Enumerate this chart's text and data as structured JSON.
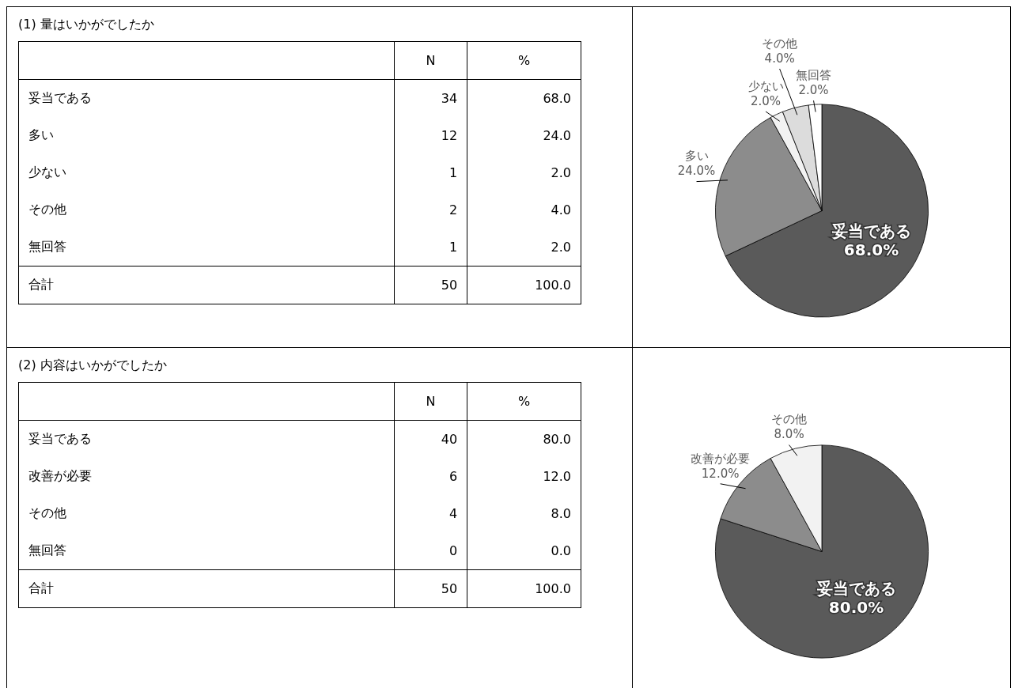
{
  "chart_data": [
    {
      "type": "other",
      "title": "(1) 量はいかがでしたか",
      "categories": [
        "妥当である",
        "多い",
        "少ない",
        "その他",
        "無回答",
        "合計"
      ],
      "series": [
        {
          "name": "N",
          "values": [
            34,
            12,
            1,
            2,
            1,
            50
          ],
          "value_labels": [
            "34",
            "12",
            "1",
            "2",
            "1",
            "50"
          ]
        },
        {
          "name": "%",
          "values": [
            68.0,
            24.0,
            2.0,
            4.0,
            2.0,
            100.0
          ],
          "value_labels": [
            "68.0",
            "24.0",
            "2.0",
            "4.0",
            "2.0",
            "100.0"
          ]
        }
      ]
    },
    {
      "type": "pie",
      "categories": [
        "妥当である",
        "多い",
        "少ない",
        "その他",
        "無回答"
      ],
      "values": [
        68,
        24,
        2,
        4,
        2
      ],
      "value_labels": [
        "68.0%",
        "24.0%",
        "2.0%",
        "4.0%",
        "2.0%"
      ],
      "colors": [
        "#5a5a5a",
        "#8c8c8c",
        "#f2f2f2",
        "#dcdcdc",
        "#ffffff"
      ]
    },
    {
      "type": "other",
      "title": "(2) 内容はいかがでしたか",
      "categories": [
        "妥当である",
        "改善が必要",
        "その他",
        "無回答",
        "合計"
      ],
      "series": [
        {
          "name": "N",
          "values": [
            40,
            6,
            4,
            0,
            50
          ],
          "value_labels": [
            "40",
            "6",
            "4",
            "0",
            "50"
          ]
        },
        {
          "name": "%",
          "values": [
            80.0,
            12.0,
            8.0,
            0.0,
            100.0
          ],
          "value_labels": [
            "80.0",
            "12.0",
            "8.0",
            "0.0",
            "100.0"
          ]
        }
      ]
    },
    {
      "type": "pie",
      "categories": [
        "妥当である",
        "改善が必要",
        "その他",
        null
      ],
      "values": [
        80,
        12,
        8,
        0
      ],
      "value_labels": [
        "80.0%",
        "12.0%",
        "8.0%",
        null
      ],
      "colors": [
        "#5a5a5a",
        "#8c8c8c",
        "#f2f2f2",
        "#ffffff"
      ]
    }
  ]
}
